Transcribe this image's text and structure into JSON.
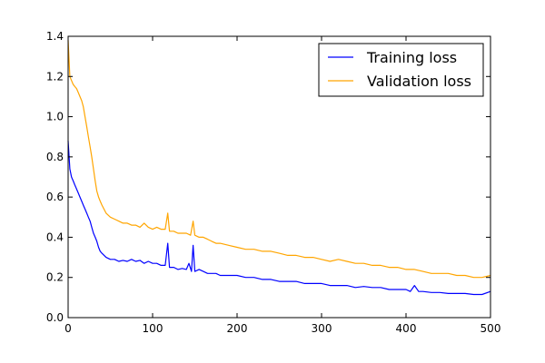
{
  "chart_data": {
    "type": "line",
    "title": "",
    "xlabel": "",
    "ylabel": "",
    "xlim": [
      0,
      500
    ],
    "ylim": [
      0.0,
      1.4
    ],
    "xticks": [
      "0",
      "100",
      "200",
      "300",
      "400",
      "500"
    ],
    "yticks": [
      "0.0",
      "0.2",
      "0.4",
      "0.6",
      "0.8",
      "1.0",
      "1.2",
      "1.4"
    ],
    "grid": false,
    "legend_position": "top-right",
    "series": [
      {
        "name": "Training loss",
        "color": "#0000ff",
        "x": [
          0,
          2,
          4,
          6,
          8,
          10,
          12,
          14,
          16,
          18,
          20,
          22,
          24,
          26,
          28,
          30,
          32,
          34,
          36,
          38,
          40,
          45,
          50,
          55,
          60,
          65,
          70,
          75,
          80,
          85,
          90,
          95,
          100,
          105,
          110,
          115,
          118,
          120,
          125,
          130,
          135,
          140,
          143,
          146,
          148,
          150,
          155,
          160,
          165,
          170,
          175,
          180,
          190,
          200,
          210,
          220,
          230,
          240,
          250,
          260,
          270,
          280,
          290,
          300,
          310,
          320,
          330,
          340,
          350,
          360,
          370,
          380,
          390,
          400,
          405,
          410,
          415,
          420,
          430,
          440,
          450,
          460,
          470,
          480,
          490,
          500
        ],
        "y": [
          0.88,
          0.74,
          0.7,
          0.68,
          0.66,
          0.64,
          0.62,
          0.6,
          0.58,
          0.56,
          0.54,
          0.52,
          0.5,
          0.48,
          0.45,
          0.42,
          0.4,
          0.38,
          0.35,
          0.33,
          0.32,
          0.3,
          0.29,
          0.29,
          0.28,
          0.285,
          0.28,
          0.29,
          0.28,
          0.285,
          0.27,
          0.28,
          0.27,
          0.27,
          0.26,
          0.26,
          0.37,
          0.25,
          0.25,
          0.24,
          0.245,
          0.24,
          0.27,
          0.23,
          0.36,
          0.23,
          0.24,
          0.23,
          0.22,
          0.22,
          0.22,
          0.21,
          0.21,
          0.21,
          0.2,
          0.2,
          0.19,
          0.19,
          0.18,
          0.18,
          0.18,
          0.17,
          0.17,
          0.17,
          0.16,
          0.16,
          0.16,
          0.15,
          0.155,
          0.15,
          0.15,
          0.14,
          0.14,
          0.14,
          0.13,
          0.16,
          0.13,
          0.13,
          0.125,
          0.125,
          0.12,
          0.12,
          0.12,
          0.115,
          0.115,
          0.13
        ]
      },
      {
        "name": "Validation loss",
        "color": "#ffa500",
        "x": [
          0,
          2,
          4,
          6,
          8,
          10,
          12,
          14,
          16,
          18,
          20,
          22,
          24,
          26,
          28,
          30,
          32,
          34,
          36,
          38,
          40,
          45,
          50,
          55,
          60,
          65,
          70,
          75,
          80,
          85,
          90,
          95,
          100,
          105,
          110,
          115,
          118,
          120,
          125,
          130,
          135,
          140,
          145,
          148,
          150,
          155,
          160,
          165,
          170,
          175,
          180,
          190,
          200,
          210,
          220,
          230,
          240,
          250,
          260,
          270,
          280,
          290,
          300,
          310,
          320,
          330,
          340,
          350,
          360,
          370,
          380,
          390,
          400,
          410,
          420,
          430,
          440,
          450,
          460,
          470,
          480,
          490,
          500
        ],
        "y": [
          1.38,
          1.2,
          1.18,
          1.16,
          1.15,
          1.14,
          1.12,
          1.1,
          1.08,
          1.05,
          1.0,
          0.95,
          0.9,
          0.85,
          0.8,
          0.74,
          0.68,
          0.63,
          0.6,
          0.58,
          0.56,
          0.52,
          0.5,
          0.49,
          0.48,
          0.47,
          0.47,
          0.46,
          0.46,
          0.45,
          0.47,
          0.45,
          0.44,
          0.45,
          0.44,
          0.44,
          0.52,
          0.43,
          0.43,
          0.42,
          0.42,
          0.42,
          0.41,
          0.48,
          0.41,
          0.4,
          0.4,
          0.39,
          0.38,
          0.37,
          0.37,
          0.36,
          0.35,
          0.34,
          0.34,
          0.33,
          0.33,
          0.32,
          0.31,
          0.31,
          0.3,
          0.3,
          0.29,
          0.28,
          0.29,
          0.28,
          0.27,
          0.27,
          0.26,
          0.26,
          0.25,
          0.25,
          0.24,
          0.24,
          0.23,
          0.22,
          0.22,
          0.22,
          0.21,
          0.21,
          0.2,
          0.2,
          0.21
        ]
      }
    ]
  }
}
